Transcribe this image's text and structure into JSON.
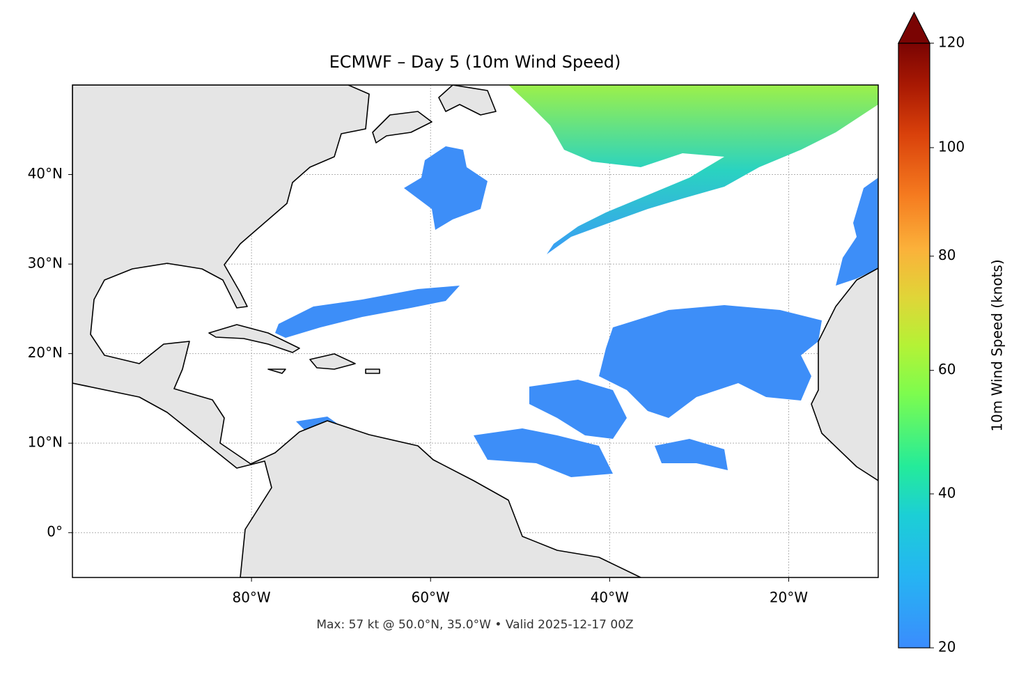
{
  "chart_data": {
    "type": "map",
    "title": "ECMWF – Day 5 (10m Wind Speed)",
    "footer": "Max: 57 kt @ 50.0°N, 35.0°W • Valid 2025-12-17 00Z",
    "xlim": [
      -100,
      -10
    ],
    "ylim": [
      -5,
      50
    ],
    "xticks": [
      {
        "value": -80,
        "label": "80°W"
      },
      {
        "value": -60,
        "label": "60°W"
      },
      {
        "value": -40,
        "label": "40°W"
      },
      {
        "value": -20,
        "label": "20°W"
      }
    ],
    "yticks": [
      {
        "value": 0,
        "label": "0°"
      },
      {
        "value": 10,
        "label": "10°N"
      },
      {
        "value": 20,
        "label": "20°N"
      },
      {
        "value": 30,
        "label": "30°N"
      },
      {
        "value": 40,
        "label": "40°N"
      }
    ],
    "grid": true,
    "colorbar": {
      "label": "10m Wind Speed (knots)",
      "clim": [
        20,
        120
      ],
      "norm_gamma": 0.85,
      "extend": "max",
      "ticks": [
        20,
        40,
        60,
        80,
        100,
        120
      ]
    }
  }
}
